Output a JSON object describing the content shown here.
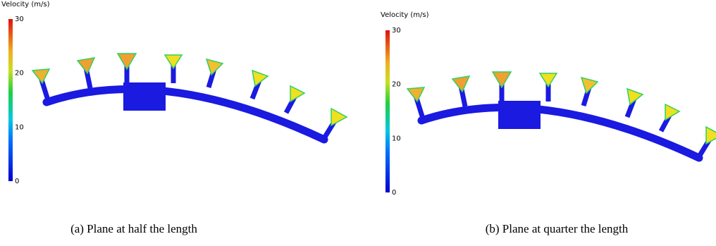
{
  "panels": [
    {
      "colorbar": {
        "title": "Velocity (m/s)",
        "ticks": [
          0,
          10,
          20,
          30
        ]
      },
      "caption": "(a) Plane at half the length"
    },
    {
      "colorbar": {
        "title": "Velocity (m/s)",
        "ticks": [
          0,
          10,
          20,
          30
        ]
      },
      "caption": "(b) Plane at quarter the length"
    }
  ]
}
